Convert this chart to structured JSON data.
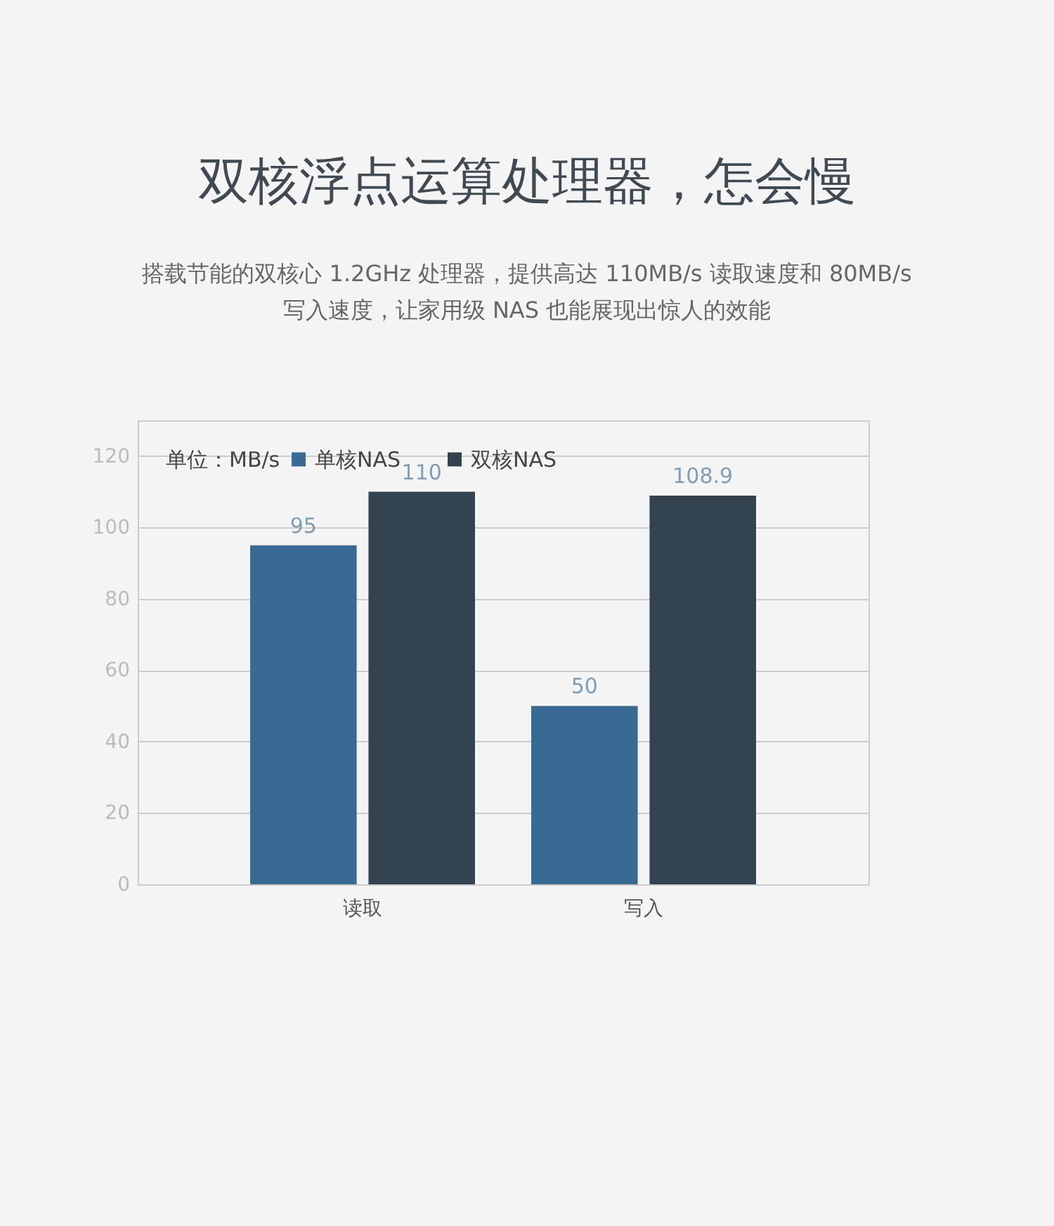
{
  "chart_data": {
    "type": "bar",
    "title": "双核浮点运算处理器，怎会慢",
    "subtitle": "搭载节能的双核心 1.2GHz 处理器，提供高达 110MB/s 读取速度和 80MB/s 写入速度，让家用级 NAS 也能展现出惊人的效能",
    "legend_title": "单位：MB/s",
    "categories": [
      "读取",
      "写入"
    ],
    "series": [
      {
        "name": "单核NAS",
        "color": "#386a93",
        "values": [
          95,
          50
        ]
      },
      {
        "name": "双核NAS",
        "color": "#33434f",
        "values": [
          110,
          108.9
        ]
      }
    ],
    "ylim": [
      0,
      130
    ],
    "yticks": [
      0,
      20,
      40,
      60,
      80,
      100,
      120
    ],
    "grid": "y",
    "legend": "top left",
    "data_labels": true
  }
}
